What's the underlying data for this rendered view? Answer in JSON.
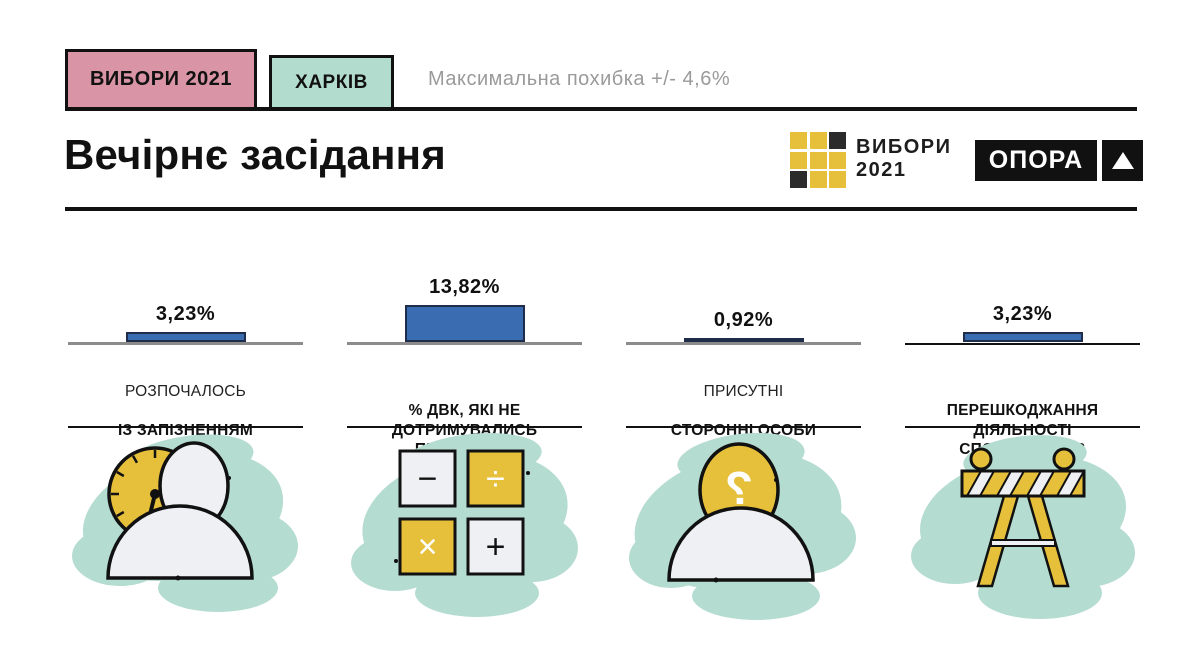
{
  "header": {
    "badge_elections": "ВИБОРИ 2021",
    "badge_city": "ХАРКІВ",
    "error_margin": "Максимальна похибка  +/- 4,6%",
    "title": "Вечірнє засідання",
    "logo_elections_line1": "ВИБОРИ",
    "logo_elections_line2": "2021",
    "logo_grid": [
      "g",
      "g",
      "d",
      "g",
      "g",
      "g",
      "d",
      "g",
      "g"
    ],
    "logo_opora": "ОПОРА"
  },
  "chart_data": {
    "type": "bar",
    "title": "Вечірнє засідання",
    "note": "Максимальна похибка +/- 4,6%",
    "unit": "percent",
    "categories": [
      "РОЗПОЧАЛОСЬ ІЗ ЗАПІЗНЕННЯМ",
      "% ДВК, ЯКІ НЕ ДОТРИМУВАЛИСЬ ПРОЦЕДУРИ ПІДРАХУНКУ",
      "ПРИСУТНІ СТОРОННІ ОСОБИ",
      "ПЕРЕШКОДЖАННЯ ДІЯЛЬНОСТІ СПОСТЕРІГАЧІВ"
    ],
    "values": [
      3.23,
      13.82,
      0.92,
      3.23
    ],
    "value_labels": [
      "3,23%",
      "13,82%",
      "0,92%",
      "3,23%"
    ],
    "bar_color": "#3a6cb2",
    "legend": "none",
    "grid": "off"
  },
  "stats": [
    {
      "value": "3,23%",
      "label_regular": "РОЗПОЧАЛОСЬ",
      "label_bold": "ІЗ ЗАПІЗНЕННЯМ",
      "icon": "clock-person-icon"
    },
    {
      "value": "13,82%",
      "label_regular": "",
      "label_bold": "% ДВК, ЯКІ НЕ\nДОТРИМУВАЛИСЬ ПРОЦЕДУРИ\nПІДРАХУНКУ",
      "icon": "arithmetic-keys-icon"
    },
    {
      "value": "0,92%",
      "label_regular": "ПРИСУТНІ",
      "label_bold": "СТОРОННІ ОСОБИ",
      "icon": "unknown-person-icon"
    },
    {
      "value": "3,23%",
      "label_regular": "",
      "label_bold": "ПЕРЕШКОДЖАННЯ ДІЯЛЬНОСТІ\nСПОСТЕРІГАЧІВ",
      "icon": "road-barrier-icon"
    }
  ],
  "colors": {
    "pink": "#d994a6",
    "teal": "#b2dcce",
    "teal_blob": "#b5dcd1",
    "yellow": "#e6c03a",
    "bar_blue": "#3a6cb2",
    "bar_border": "#1f2c4a",
    "gray_text": "#9a9a9a",
    "line_black": "#111111",
    "baseline_gray": "#8c8c8c",
    "paper": "#f0f1f4"
  }
}
